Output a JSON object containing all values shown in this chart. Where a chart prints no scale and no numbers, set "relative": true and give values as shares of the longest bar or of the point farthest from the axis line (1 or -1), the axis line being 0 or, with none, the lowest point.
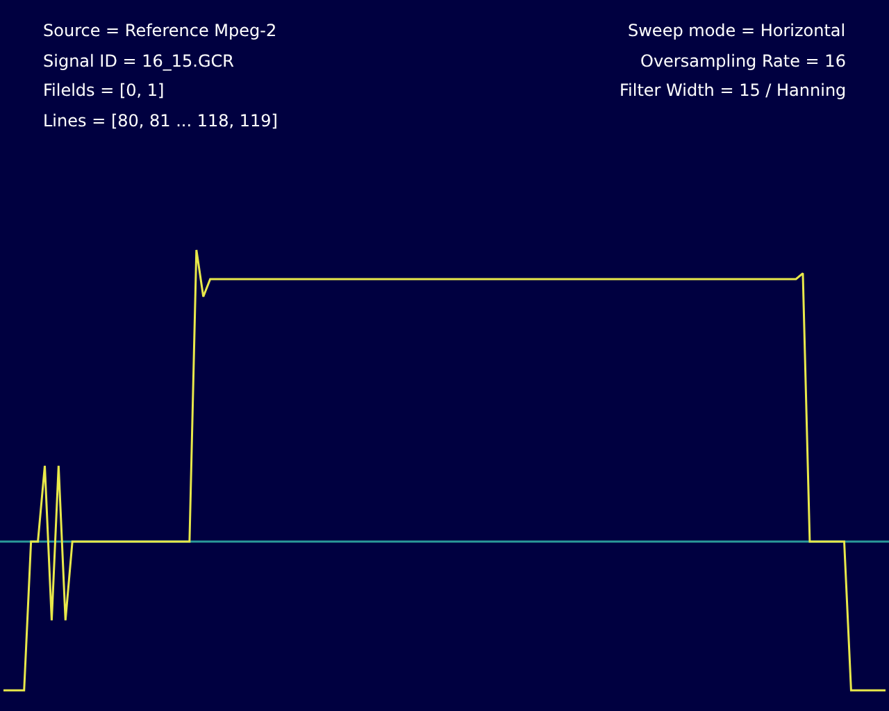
{
  "chart_data": {
    "type": "line",
    "relative": true,
    "grid": false,
    "marker": "none",
    "line_style": "solid",
    "ref_lines": [
      {
        "axis": "y",
        "value": 0,
        "color": "#2a9a9a"
      }
    ],
    "annotations": [
      "Source = Reference Mpeg-2",
      "Signal ID = 16_15.GCR",
      "Filelds = [0, 1]",
      "Lines = [80, 81 ... 118, 119]",
      "Sweep mode = Horizontal",
      "Oversampling Rate = 16",
      "Filter Width = 15 / Hanning"
    ],
    "categories": [
      null,
      null,
      null,
      null,
      null,
      null,
      null,
      null,
      null,
      null,
      null,
      null,
      null,
      null,
      null,
      null,
      null,
      null,
      null,
      null,
      null,
      null,
      null,
      null,
      null,
      null,
      null,
      null,
      null,
      null,
      null,
      null,
      null,
      null,
      null,
      null,
      null,
      null,
      null,
      null,
      null,
      null,
      null,
      null,
      null,
      null,
      null,
      null,
      null,
      null,
      null,
      null,
      null,
      null,
      null,
      null,
      null,
      null,
      null,
      null,
      null,
      null,
      null,
      null,
      null,
      null,
      null,
      null,
      null,
      null,
      null,
      null,
      null,
      null,
      null,
      null,
      null,
      null,
      null,
      null,
      null,
      null,
      null,
      null,
      null,
      null,
      null,
      null,
      null,
      null,
      null,
      null,
      null,
      null,
      null,
      null,
      null,
      null,
      null,
      null,
      null,
      null,
      null,
      null,
      null,
      null,
      null,
      null,
      null,
      null,
      null,
      null,
      null,
      null,
      null,
      null,
      null,
      null,
      null,
      null,
      null,
      null,
      null,
      null,
      null,
      null,
      null,
      null,
      null
    ],
    "series": [
      {
        "color": "#e8e84a",
        "values": [
          -0.51,
          -0.51,
          -0.51,
          -0.51,
          0,
          0,
          0.26,
          -0.27,
          0.26,
          -0.27,
          0,
          0,
          0,
          0,
          0,
          0,
          0,
          0,
          0,
          0,
          0,
          0,
          0,
          0,
          0,
          0,
          0,
          0,
          1,
          0.84,
          0.9,
          0.9,
          0.9,
          0.9,
          0.9,
          0.9,
          0.9,
          0.9,
          0.9,
          0.9,
          0.9,
          0.9,
          0.9,
          0.9,
          0.9,
          0.9,
          0.9,
          0.9,
          0.9,
          0.9,
          0.9,
          0.9,
          0.9,
          0.9,
          0.9,
          0.9,
          0.9,
          0.9,
          0.9,
          0.9,
          0.9,
          0.9,
          0.9,
          0.9,
          0.9,
          0.9,
          0.9,
          0.9,
          0.9,
          0.9,
          0.9,
          0.9,
          0.9,
          0.9,
          0.9,
          0.9,
          0.9,
          0.9,
          0.9,
          0.9,
          0.9,
          0.9,
          0.9,
          0.9,
          0.9,
          0.9,
          0.9,
          0.9,
          0.9,
          0.9,
          0.9,
          0.9,
          0.9,
          0.9,
          0.9,
          0.9,
          0.9,
          0.9,
          0.9,
          0.9,
          0.9,
          0.9,
          0.9,
          0.9,
          0.9,
          0.9,
          0.9,
          0.9,
          0.9,
          0.9,
          0.9,
          0.9,
          0.9,
          0.9,
          0.9,
          0.9,
          0.92,
          0,
          0,
          0,
          0,
          0,
          0,
          -0.51,
          -0.51,
          -0.51,
          -0.51,
          -0.51,
          -0.51
        ]
      }
    ]
  }
}
